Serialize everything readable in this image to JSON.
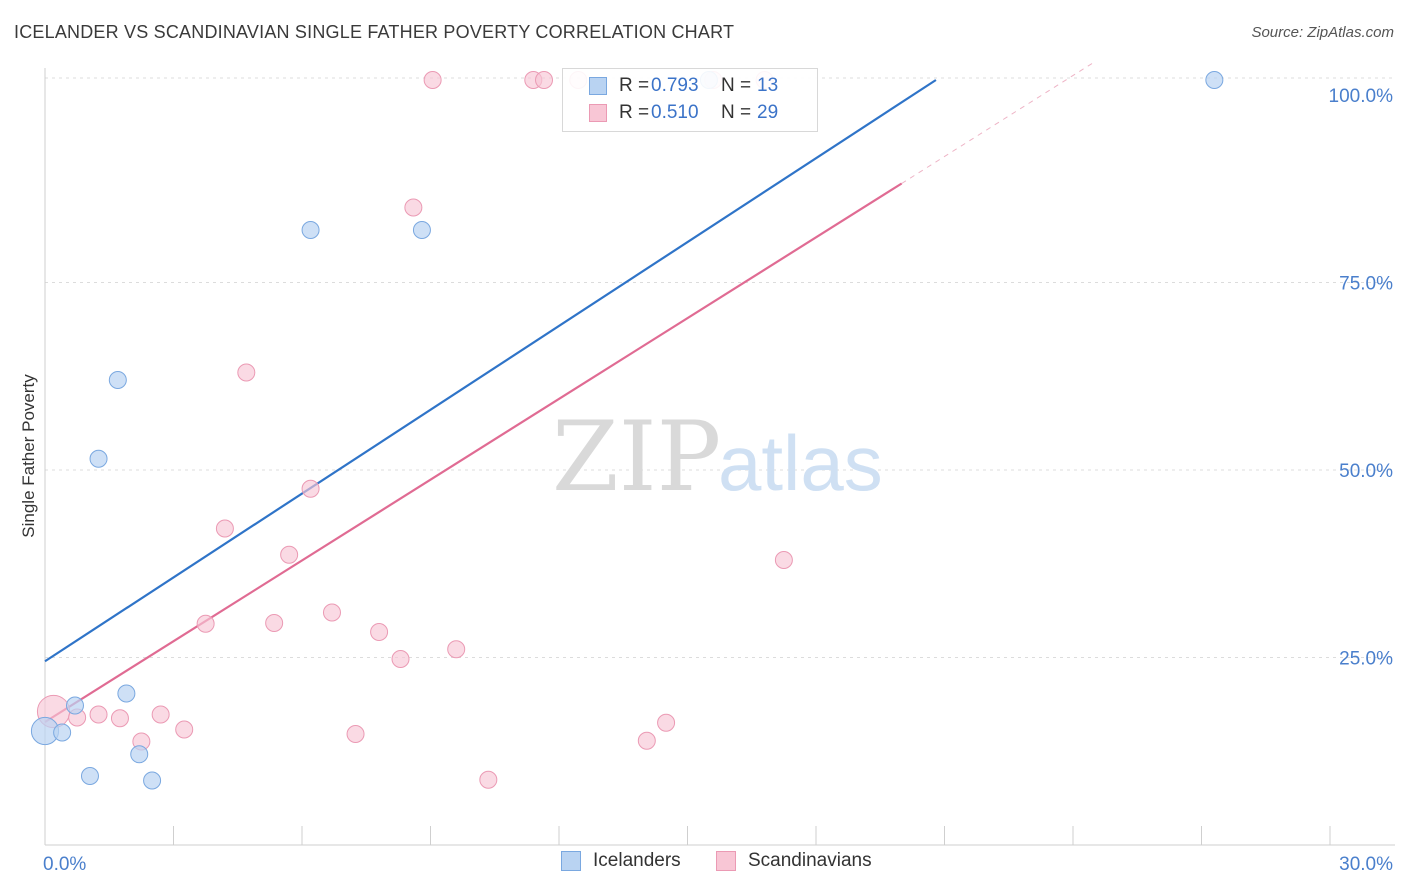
{
  "title": "ICELANDER VS SCANDINAVIAN SINGLE FATHER POVERTY CORRELATION CHART",
  "source": "Source: ZipAtlas.com",
  "watermark": {
    "part1": "ZIP",
    "part2": "atlas"
  },
  "legend": [
    {
      "r_label": "R =",
      "r_value": "0.793",
      "n_label": "N =",
      "n_value": "13"
    },
    {
      "r_label": "R =",
      "r_value": "0.510",
      "n_label": "N =",
      "n_value": "29"
    }
  ],
  "bottom_legend": [
    "Icelanders",
    "Scandinavians"
  ],
  "colors": {
    "icelanders_fill": "#b9d3f2",
    "icelanders_stroke": "#7aa8e0",
    "icelanders_line": "#2f74c8",
    "scandinavians_fill": "#f8c6d5",
    "scandinavians_stroke": "#eb9ab4",
    "scandinavians_line": "#e06b93",
    "tick_text": "#4a7fcc"
  },
  "chart_data": {
    "type": "scatter",
    "title": "ICELANDER VS SCANDINAVIAN SINGLE FATHER POVERTY CORRELATION CHART",
    "xlabel": "",
    "ylabel": "Single Father Poverty",
    "xlim": [
      0,
      30
    ],
    "ylim": [
      0,
      102
    ],
    "x_tick_labels": [
      "0.0%",
      "30.0%"
    ],
    "y_ticks": [
      25,
      50,
      75,
      100
    ],
    "y_tick_labels": [
      "25.0%",
      "50.0%",
      "75.0%",
      "100.0%"
    ],
    "grid": "horizontal dashed",
    "series": [
      {
        "name": "Icelanders",
        "points": [
          {
            "x": 0.0,
            "y": 15.2,
            "s": 1.6
          },
          {
            "x": 0.4,
            "y": 15.0,
            "s": 1.0
          },
          {
            "x": 0.7,
            "y": 18.6,
            "s": 1.0
          },
          {
            "x": 1.05,
            "y": 9.2,
            "s": 1.0
          },
          {
            "x": 1.25,
            "y": 51.5,
            "s": 1.0
          },
          {
            "x": 1.7,
            "y": 62.0,
            "s": 1.0
          },
          {
            "x": 1.9,
            "y": 20.2,
            "s": 1.0
          },
          {
            "x": 2.2,
            "y": 12.1,
            "s": 1.0
          },
          {
            "x": 2.5,
            "y": 8.6,
            "s": 1.0
          },
          {
            "x": 6.2,
            "y": 82.0,
            "s": 1.0
          },
          {
            "x": 8.8,
            "y": 82.0,
            "s": 1.0
          },
          {
            "x": 15.5,
            "y": 102.0,
            "s": 1.0
          },
          {
            "x": 27.3,
            "y": 102.0,
            "s": 1.0
          }
        ],
        "trend": {
          "x0": 0,
          "y0": 24.5,
          "x1": 20.8,
          "y1": 102
        }
      },
      {
        "name": "Scandinavians",
        "points": [
          {
            "x": 0.2,
            "y": 17.8,
            "s": 1.9
          },
          {
            "x": 0.75,
            "y": 17.0,
            "s": 1.0
          },
          {
            "x": 1.25,
            "y": 17.4,
            "s": 1.0
          },
          {
            "x": 1.75,
            "y": 16.9,
            "s": 1.0
          },
          {
            "x": 2.25,
            "y": 13.8,
            "s": 1.0
          },
          {
            "x": 2.7,
            "y": 17.4,
            "s": 1.0
          },
          {
            "x": 3.25,
            "y": 15.4,
            "s": 1.0
          },
          {
            "x": 3.75,
            "y": 29.5,
            "s": 1.0
          },
          {
            "x": 4.2,
            "y": 42.2,
            "s": 1.0
          },
          {
            "x": 4.7,
            "y": 63.0,
            "s": 1.0
          },
          {
            "x": 5.35,
            "y": 29.6,
            "s": 1.0
          },
          {
            "x": 5.7,
            "y": 38.7,
            "s": 1.0
          },
          {
            "x": 6.2,
            "y": 47.5,
            "s": 1.0
          },
          {
            "x": 6.7,
            "y": 31.0,
            "s": 1.0
          },
          {
            "x": 7.25,
            "y": 14.8,
            "s": 1.0
          },
          {
            "x": 7.8,
            "y": 28.4,
            "s": 1.0
          },
          {
            "x": 8.3,
            "y": 24.8,
            "s": 1.0
          },
          {
            "x": 8.6,
            "y": 85.0,
            "s": 1.0
          },
          {
            "x": 9.05,
            "y": 102.0,
            "s": 1.0
          },
          {
            "x": 9.6,
            "y": 26.1,
            "s": 1.0
          },
          {
            "x": 10.35,
            "y": 8.7,
            "s": 1.0
          },
          {
            "x": 11.4,
            "y": 102.0,
            "s": 1.0
          },
          {
            "x": 11.65,
            "y": 102.0,
            "s": 1.0
          },
          {
            "x": 12.45,
            "y": 102.0,
            "s": 1.0
          },
          {
            "x": 14.05,
            "y": 13.9,
            "s": 1.0
          },
          {
            "x": 14.5,
            "y": 16.3,
            "s": 1.0
          },
          {
            "x": 15.6,
            "y": 102.0,
            "s": 1.0
          },
          {
            "x": 16.8,
            "y": 102.0,
            "s": 1.0
          },
          {
            "x": 17.25,
            "y": 38.0,
            "s": 1.0
          }
        ],
        "trend": {
          "x0": 0,
          "y0": 16.4,
          "x1": 20.0,
          "y1": 88.2
        },
        "trend_dashed_extension": {
          "x0": 20.0,
          "y0": 88.2,
          "x1": 24.5,
          "y1": 104.4
        }
      }
    ]
  }
}
